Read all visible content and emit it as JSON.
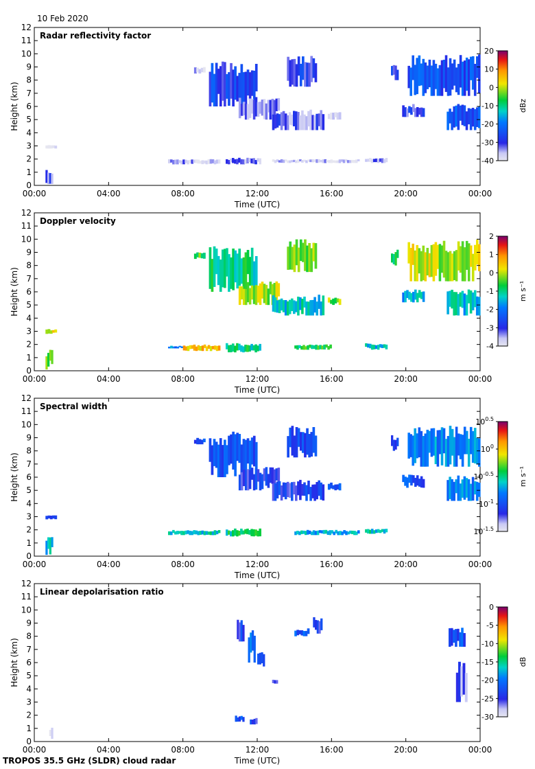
{
  "date_label": "10 Feb 2020",
  "footer_label": "TROPOS 35.5 GHz (SLDR) cloud radar",
  "chart_data": [
    {
      "type": "heatmap",
      "title": "Radar reflectivity factor",
      "xlabel": "Time (UTC)",
      "ylabel": "Height (km)",
      "x_tick_labels": [
        "00:00",
        "04:00",
        "08:00",
        "12:00",
        "16:00",
        "20:00",
        "00:00"
      ],
      "y_tick_labels": [
        "0",
        "1",
        "2",
        "3",
        "4",
        "5",
        "6",
        "7",
        "8",
        "9",
        "10",
        "11",
        "12"
      ],
      "xlim_hours": [
        0,
        24
      ],
      "ylim_km": [
        0,
        12
      ],
      "colorbar": {
        "unit": "dBz",
        "ticks": [
          "20",
          "10",
          "0",
          "-10",
          "-20",
          "-30",
          "-40"
        ],
        "range": [
          -40,
          20
        ]
      },
      "echoes": [
        {
          "t0": 0.6,
          "t1": 1.0,
          "h0": 0.1,
          "h1": 1.2,
          "value": -32
        },
        {
          "t0": 0.6,
          "t1": 1.2,
          "h0": 2.8,
          "h1": 3.1,
          "value": -38
        },
        {
          "t0": 7.2,
          "t1": 10.0,
          "h0": 1.6,
          "h1": 2.0,
          "value": -36
        },
        {
          "t0": 10.3,
          "t1": 12.2,
          "h0": 1.6,
          "h1": 2.1,
          "value": -33
        },
        {
          "t0": 12.8,
          "t1": 17.5,
          "h0": 1.7,
          "h1": 2.0,
          "value": -38
        },
        {
          "t0": 17.8,
          "t1": 19.0,
          "h0": 1.7,
          "h1": 2.1,
          "value": -35
        },
        {
          "t0": 8.6,
          "t1": 9.2,
          "h0": 8.5,
          "h1": 9.0,
          "value": -36
        },
        {
          "t0": 9.4,
          "t1": 12.0,
          "h0": 6.0,
          "h1": 9.5,
          "value": -27
        },
        {
          "t0": 11.0,
          "t1": 13.2,
          "h0": 5.0,
          "h1": 6.8,
          "value": -34
        },
        {
          "t0": 12.8,
          "t1": 15.6,
          "h0": 4.2,
          "h1": 5.8,
          "value": -32
        },
        {
          "t0": 13.6,
          "t1": 15.2,
          "h0": 7.5,
          "h1": 10.0,
          "value": -29
        },
        {
          "t0": 15.8,
          "t1": 16.5,
          "h0": 5.0,
          "h1": 5.6,
          "value": -38
        },
        {
          "t0": 19.2,
          "t1": 19.6,
          "h0": 8.0,
          "h1": 9.2,
          "value": -28
        },
        {
          "t0": 20.1,
          "t1": 24.0,
          "h0": 6.8,
          "h1": 10.0,
          "value": -25
        },
        {
          "t0": 19.8,
          "t1": 21.0,
          "h0": 5.2,
          "h1": 6.2,
          "value": -30
        },
        {
          "t0": 22.2,
          "t1": 24.0,
          "h0": 4.2,
          "h1": 6.2,
          "value": -24
        }
      ]
    },
    {
      "type": "heatmap",
      "title": "Doppler velocity",
      "xlabel": "Time (UTC)",
      "ylabel": "Height (km)",
      "x_tick_labels": [
        "00:00",
        "04:00",
        "08:00",
        "12:00",
        "16:00",
        "20:00",
        "00:00"
      ],
      "y_tick_labels": [
        "0",
        "1",
        "2",
        "3",
        "4",
        "5",
        "6",
        "7",
        "8",
        "9",
        "10",
        "11",
        "12"
      ],
      "xlim_hours": [
        0,
        24
      ],
      "ylim_km": [
        0,
        12
      ],
      "colorbar": {
        "unit": "m s⁻¹",
        "ticks": [
          "2",
          "1",
          "0",
          "-1",
          "-2",
          "-3",
          "-4"
        ],
        "range": [
          -4,
          2
        ]
      },
      "echoes": [
        {
          "t0": 0.6,
          "t1": 1.0,
          "h0": 0.1,
          "h1": 1.6,
          "value": -0.5
        },
        {
          "t0": 0.6,
          "t1": 1.2,
          "h0": 2.8,
          "h1": 3.2,
          "value": 0.2
        },
        {
          "t0": 7.2,
          "t1": 8.0,
          "h0": 1.7,
          "h1": 1.9,
          "value": -2.0
        },
        {
          "t0": 8.0,
          "t1": 10.0,
          "h0": 1.5,
          "h1": 2.0,
          "value": 0.5
        },
        {
          "t0": 10.3,
          "t1": 12.2,
          "h0": 1.4,
          "h1": 2.1,
          "value": -1.0
        },
        {
          "t0": 14.0,
          "t1": 16.0,
          "h0": 1.6,
          "h1": 2.0,
          "value": -0.8
        },
        {
          "t0": 17.8,
          "t1": 19.0,
          "h0": 1.6,
          "h1": 2.1,
          "value": -1.5
        },
        {
          "t0": 8.6,
          "t1": 9.2,
          "h0": 8.5,
          "h1": 9.0,
          "value": -0.5
        },
        {
          "t0": 9.4,
          "t1": 12.0,
          "h0": 6.0,
          "h1": 9.5,
          "value": -1.0
        },
        {
          "t0": 11.0,
          "t1": 13.2,
          "h0": 5.0,
          "h1": 6.8,
          "value": -0.2
        },
        {
          "t0": 12.8,
          "t1": 15.6,
          "h0": 4.2,
          "h1": 5.8,
          "value": -1.3
        },
        {
          "t0": 13.6,
          "t1": 15.2,
          "h0": 7.5,
          "h1": 10.0,
          "value": -0.4
        },
        {
          "t0": 15.8,
          "t1": 16.5,
          "h0": 5.0,
          "h1": 5.6,
          "value": -0.3
        },
        {
          "t0": 19.2,
          "t1": 19.6,
          "h0": 8.0,
          "h1": 9.2,
          "value": -0.6
        },
        {
          "t0": 20.1,
          "t1": 24.0,
          "h0": 6.8,
          "h1": 10.0,
          "value": 0.0
        },
        {
          "t0": 19.8,
          "t1": 21.0,
          "h0": 5.2,
          "h1": 6.2,
          "value": -1.6
        },
        {
          "t0": 22.2,
          "t1": 24.0,
          "h0": 4.2,
          "h1": 6.2,
          "value": -1.4
        }
      ]
    },
    {
      "type": "heatmap",
      "title": "Spectral width",
      "xlabel": "Time (UTC)",
      "ylabel": "Height (km)",
      "x_tick_labels": [
        "00:00",
        "04:00",
        "08:00",
        "12:00",
        "16:00",
        "20:00",
        "00:00"
      ],
      "y_tick_labels": [
        "0",
        "1",
        "2",
        "3",
        "4",
        "5",
        "6",
        "7",
        "8",
        "9",
        "10",
        "11",
        "12"
      ],
      "xlim_hours": [
        0,
        24
      ],
      "ylim_km": [
        0,
        12
      ],
      "colorbar": {
        "unit": "m s⁻¹",
        "ticks": [
          "10^0.5",
          "10^0",
          "10^-0.5",
          "10^-1",
          "10^-1.5"
        ],
        "range_log10": [
          -1.5,
          0.5
        ]
      },
      "echoes": [
        {
          "t0": 0.6,
          "t1": 1.0,
          "h0": 0.1,
          "h1": 1.6,
          "value": -0.6
        },
        {
          "t0": 0.6,
          "t1": 1.2,
          "h0": 2.8,
          "h1": 3.1,
          "value": -1.0
        },
        {
          "t0": 7.2,
          "t1": 10.0,
          "h0": 1.6,
          "h1": 2.0,
          "value": -0.6
        },
        {
          "t0": 10.3,
          "t1": 12.2,
          "h0": 1.5,
          "h1": 2.1,
          "value": -0.5
        },
        {
          "t0": 14.0,
          "t1": 17.5,
          "h0": 1.6,
          "h1": 2.0,
          "value": -0.7
        },
        {
          "t0": 17.8,
          "t1": 19.0,
          "h0": 1.7,
          "h1": 2.1,
          "value": -0.6
        },
        {
          "t0": 8.6,
          "t1": 9.2,
          "h0": 8.5,
          "h1": 9.0,
          "value": -1.0
        },
        {
          "t0": 9.4,
          "t1": 12.0,
          "h0": 6.0,
          "h1": 9.5,
          "value": -1.0
        },
        {
          "t0": 11.0,
          "t1": 13.2,
          "h0": 5.0,
          "h1": 6.8,
          "value": -1.1
        },
        {
          "t0": 12.8,
          "t1": 15.6,
          "h0": 4.2,
          "h1": 5.8,
          "value": -1.1
        },
        {
          "t0": 13.6,
          "t1": 15.2,
          "h0": 7.5,
          "h1": 10.0,
          "value": -1.0
        },
        {
          "t0": 15.8,
          "t1": 16.5,
          "h0": 5.0,
          "h1": 5.6,
          "value": -1.0
        },
        {
          "t0": 19.2,
          "t1": 19.6,
          "h0": 8.0,
          "h1": 9.2,
          "value": -1.0
        },
        {
          "t0": 20.1,
          "t1": 24.0,
          "h0": 6.8,
          "h1": 10.0,
          "value": -0.8
        },
        {
          "t0": 19.8,
          "t1": 21.0,
          "h0": 5.2,
          "h1": 6.2,
          "value": -1.0
        },
        {
          "t0": 22.2,
          "t1": 24.0,
          "h0": 4.2,
          "h1": 6.2,
          "value": -0.8
        }
      ]
    },
    {
      "type": "heatmap",
      "title": "Linear depolarisation ratio",
      "xlabel": "Time (UTC)",
      "ylabel": "Height (km)",
      "x_tick_labels": [
        "00:00",
        "04:00",
        "08:00",
        "12:00",
        "16:00",
        "20:00",
        "00:00"
      ],
      "y_tick_labels": [
        "0",
        "1",
        "2",
        "3",
        "4",
        "5",
        "6",
        "7",
        "8",
        "9",
        "10",
        "11",
        "12"
      ],
      "xlim_hours": [
        0,
        24
      ],
      "ylim_km": [
        0,
        12
      ],
      "colorbar": {
        "unit": "dB",
        "ticks": [
          "0",
          "-5",
          "-10",
          "-15",
          "-20",
          "-25",
          "-30"
        ],
        "range": [
          -30,
          0
        ]
      },
      "echoes": [
        {
          "t0": 0.8,
          "t1": 1.0,
          "h0": 0.2,
          "h1": 1.1,
          "value": -29
        },
        {
          "t0": 10.8,
          "t1": 11.3,
          "h0": 1.5,
          "h1": 2.0,
          "value": -22
        },
        {
          "t0": 11.6,
          "t1": 12.0,
          "h0": 1.3,
          "h1": 1.8,
          "value": -24
        },
        {
          "t0": 10.9,
          "t1": 11.3,
          "h0": 7.6,
          "h1": 9.4,
          "value": -24
        },
        {
          "t0": 11.5,
          "t1": 11.9,
          "h0": 6.0,
          "h1": 8.6,
          "value": -21
        },
        {
          "t0": 12.0,
          "t1": 12.4,
          "h0": 5.6,
          "h1": 6.8,
          "value": -24
        },
        {
          "t0": 12.8,
          "t1": 13.1,
          "h0": 4.4,
          "h1": 4.8,
          "value": -25
        },
        {
          "t0": 15.0,
          "t1": 15.5,
          "h0": 8.2,
          "h1": 9.6,
          "value": -24
        },
        {
          "t0": 14.0,
          "t1": 14.8,
          "h0": 8.0,
          "h1": 8.6,
          "value": -22
        },
        {
          "t0": 22.3,
          "t1": 23.2,
          "h0": 7.2,
          "h1": 8.8,
          "value": -22
        },
        {
          "t0": 22.7,
          "t1": 23.3,
          "h0": 3.0,
          "h1": 6.2,
          "value": -26
        }
      ]
    }
  ]
}
